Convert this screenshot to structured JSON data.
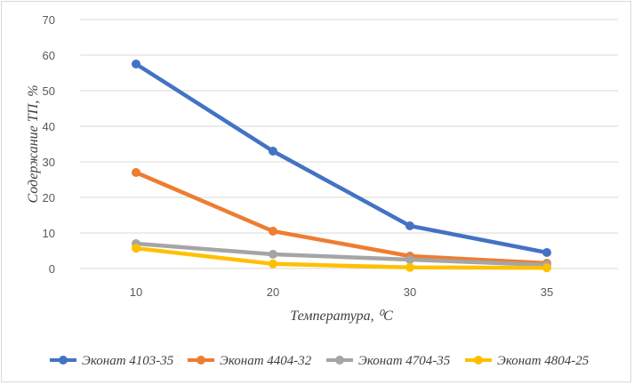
{
  "chart_data": {
    "type": "line",
    "categories": [
      "10",
      "20",
      "30",
      "35"
    ],
    "series": [
      {
        "name": "Эконат 4103-35",
        "values": [
          57.5,
          33,
          12,
          4.5
        ],
        "color": "#4472c4"
      },
      {
        "name": "Эконат 4404-32",
        "values": [
          27,
          10.5,
          3.5,
          1.5
        ],
        "color": "#ed7d31"
      },
      {
        "name": "Эконат 4704-35",
        "values": [
          7,
          4,
          2.5,
          1
        ],
        "color": "#a5a5a5"
      },
      {
        "name": "Эконат 4804-25",
        "values": [
          5.7,
          1.3,
          0.3,
          0.2
        ],
        "color": "#ffc000"
      }
    ],
    "xlabel": "Температура, ⁰С",
    "ylabel": "Содержание ТП, %",
    "yticks": [
      "0",
      "10",
      "20",
      "30",
      "40",
      "50",
      "60",
      "70"
    ],
    "ylim": [
      0,
      70
    ],
    "grid": true,
    "legend_position": "bottom"
  }
}
